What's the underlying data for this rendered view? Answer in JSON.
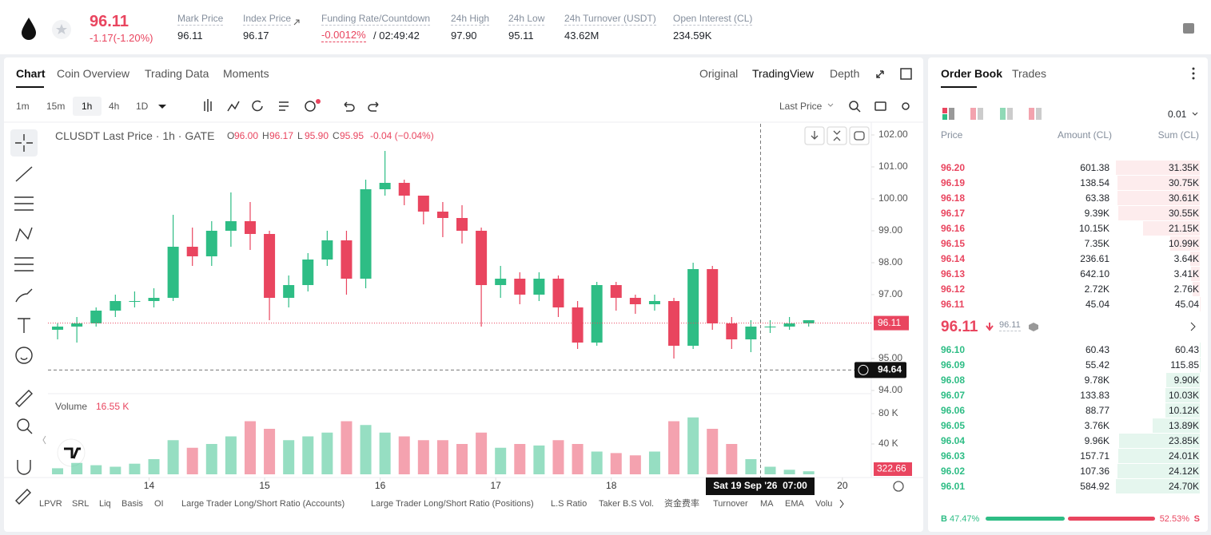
{
  "header": {
    "price": "96.11",
    "change": "-1.17(-1.20%)",
    "stats": [
      {
        "label": "Mark Price",
        "value": "96.11"
      },
      {
        "label": "Index Price",
        "value": "96.17"
      },
      {
        "label": "Funding Rate/Countdown",
        "value": "-0.0012%",
        "extra": "/ 02:49:42"
      },
      {
        "label": "24h High",
        "value": "97.90"
      },
      {
        "label": "24h Low",
        "value": "95.11"
      },
      {
        "label": "24h Turnover (USDT)",
        "value": "43.62M"
      },
      {
        "label": "Open Interest (CL)",
        "value": "234.59K"
      }
    ]
  },
  "chart_panel": {
    "tabs": [
      "Chart",
      "Coin Overview",
      "Trading Data",
      "Moments"
    ],
    "views": [
      "Original",
      "TradingView",
      "Depth"
    ],
    "intervals": [
      "1m",
      "15m",
      "1h",
      "4h",
      "1D"
    ],
    "price_source": "Last Price",
    "legend": {
      "title": "CLUSDT Last Price · 1h · GATE",
      "ohlc": [
        {
          "key": "O",
          "value": "96.00"
        },
        {
          "key": "H",
          "value": "96.17"
        },
        {
          "key": "L",
          "value": "95.90"
        },
        {
          "key": "C",
          "value": "95.95"
        }
      ],
      "change": "-0.04 (−0.04%)"
    },
    "volume": {
      "title": "Volume",
      "value": "16.55 K",
      "last": "322.66"
    },
    "cursor_time": "Sat 19 Sep '26  07:00",
    "indicators": [
      "LPVR",
      "SRL",
      "Liq",
      "Basis",
      "OI",
      "Large Trader Long/Short Ratio (Accounts)",
      "Large Trader Long/Short Ratio (Positions)",
      "L.S Ratio",
      "Taker B.S Vol.",
      "资金费率",
      "Turnover",
      "MA",
      "EMA",
      "Volu"
    ]
  },
  "chart_data": {
    "type": "candlestick",
    "x": [
      2,
      6,
      10,
      14,
      18,
      22,
      26,
      30,
      34,
      38,
      42,
      46,
      50,
      54,
      58,
      62,
      66,
      70,
      74,
      78,
      82,
      86,
      90,
      94,
      98,
      102,
      106,
      110,
      114,
      118,
      122,
      126,
      130,
      134,
      138,
      142,
      146,
      150,
      154,
      158
    ],
    "open": [
      95.9,
      96.0,
      96.1,
      96.5,
      96.8,
      96.8,
      96.9,
      98.5,
      98.2,
      99.0,
      99.3,
      98.9,
      96.9,
      97.3,
      98.1,
      98.7,
      97.5,
      100.3,
      100.5,
      100.1,
      99.6,
      99.4,
      99.0,
      97.3,
      97.5,
      97.0,
      97.5,
      96.6,
      95.5,
      97.3,
      96.9,
      96.7,
      96.8,
      95.4,
      97.8,
      96.1,
      95.6,
      96.0,
      96.0,
      96.1
    ],
    "high": [
      96.1,
      96.3,
      96.6,
      97.0,
      97.1,
      97.2,
      99.5,
      99.1,
      99.3,
      100.2,
      99.9,
      99.0,
      97.6,
      98.3,
      99.0,
      99.0,
      100.6,
      101.5,
      100.6,
      100.1,
      99.9,
      99.8,
      99.1,
      97.9,
      97.7,
      97.7,
      97.6,
      96.8,
      97.4,
      97.4,
      97.0,
      97.0,
      96.9,
      98.0,
      97.9,
      96.3,
      96.2,
      96.2,
      96.3,
      96.2
    ],
    "low": [
      95.6,
      95.5,
      96.0,
      96.3,
      96.6,
      96.6,
      96.8,
      97.9,
      97.9,
      98.5,
      98.4,
      96.2,
      96.6,
      97.1,
      97.9,
      97.0,
      97.2,
      100.1,
      99.8,
      99.2,
      98.8,
      98.6,
      96.0,
      96.9,
      96.7,
      96.8,
      96.3,
      95.3,
      95.4,
      96.5,
      96.4,
      96.5,
      95.0,
      95.3,
      95.9,
      95.3,
      95.2,
      95.8,
      95.9,
      96.0
    ],
    "close": [
      96.0,
      96.1,
      96.5,
      96.8,
      96.8,
      96.9,
      98.5,
      98.2,
      99.0,
      99.3,
      98.9,
      96.9,
      97.3,
      98.1,
      98.7,
      97.5,
      100.3,
      100.5,
      100.1,
      99.6,
      99.4,
      99.0,
      97.3,
      97.5,
      97.0,
      97.5,
      96.6,
      95.5,
      97.3,
      96.9,
      96.7,
      96.8,
      95.4,
      97.8,
      96.1,
      95.6,
      96.0,
      96.0,
      96.1,
      96.2
    ],
    "volume": [
      8,
      15,
      12,
      10,
      14,
      20,
      45,
      35,
      40,
      50,
      70,
      60,
      45,
      50,
      55,
      70,
      65,
      55,
      50,
      45,
      45,
      40,
      55,
      35,
      40,
      38,
      45,
      40,
      30,
      28,
      25,
      30,
      70,
      75,
      60,
      40,
      20,
      10,
      6,
      4
    ],
    "up_color": "#2ebd85",
    "down_color": "#e9455f",
    "xlim": [
      0,
      171
    ],
    "xticks": [
      {
        "value": 21,
        "label": "14"
      },
      {
        "value": 45,
        "label": "15"
      },
      {
        "value": 69,
        "label": "16"
      },
      {
        "value": 93,
        "label": "17"
      },
      {
        "value": 117,
        "label": "18"
      },
      {
        "value": 165,
        "label": "20"
      }
    ],
    "ylim": [
      93.925,
      102.35
    ],
    "yticks": [
      {
        "value": 102,
        "label": "102.00"
      },
      {
        "value": 101,
        "label": "101.00"
      },
      {
        "value": 100,
        "label": "100.00"
      },
      {
        "value": 99,
        "label": "99.00"
      },
      {
        "value": 98,
        "label": "98.00"
      },
      {
        "value": 97,
        "label": "97.00"
      },
      {
        "value": 95,
        "label": "95.00"
      },
      {
        "value": 94,
        "label": "94.00"
      }
    ],
    "volume_ylim": [
      0,
      100
    ],
    "volume_ticks": [
      {
        "value": 80,
        "label": "80 K"
      },
      {
        "value": 40,
        "label": "40 K"
      }
    ],
    "last_price": 96.11,
    "cursor_price": 94.64,
    "cursor_x": 148
  },
  "order_book": {
    "tabs": [
      "Order Book",
      "Trades"
    ],
    "precision": "0.01",
    "columns": [
      "Price",
      "Amount (CL)",
      "Sum (CL)"
    ],
    "asks": [
      [
        "96.20",
        "601.38",
        "31.35K"
      ],
      [
        "96.19",
        "138.54",
        "30.75K"
      ],
      [
        "96.18",
        "63.38",
        "30.61K"
      ],
      [
        "96.17",
        "9.39K",
        "30.55K"
      ],
      [
        "96.16",
        "10.15K",
        "21.15K"
      ],
      [
        "96.15",
        "7.35K",
        "10.99K"
      ],
      [
        "96.14",
        "236.61",
        "3.64K"
      ],
      [
        "96.13",
        "642.10",
        "3.41K"
      ],
      [
        "96.12",
        "2.72K",
        "2.76K"
      ],
      [
        "96.11",
        "45.04",
        "45.04"
      ]
    ],
    "mid": {
      "price": "96.11",
      "mark": "96.11"
    },
    "bids": [
      [
        "96.10",
        "60.43",
        "60.43"
      ],
      [
        "96.09",
        "55.42",
        "115.85"
      ],
      [
        "96.08",
        "9.78K",
        "9.90K"
      ],
      [
        "96.07",
        "133.83",
        "10.03K"
      ],
      [
        "96.06",
        "88.77",
        "10.12K"
      ],
      [
        "96.05",
        "3.76K",
        "13.89K"
      ],
      [
        "96.04",
        "9.96K",
        "23.85K"
      ],
      [
        "96.03",
        "157.71",
        "24.01K"
      ],
      [
        "96.02",
        "107.36",
        "24.12K"
      ],
      [
        "96.01",
        "584.92",
        "24.70K"
      ]
    ],
    "ratio": {
      "buy_key": "B",
      "buy": "47.47%",
      "sell": "52.53%",
      "sell_key": "S"
    }
  }
}
